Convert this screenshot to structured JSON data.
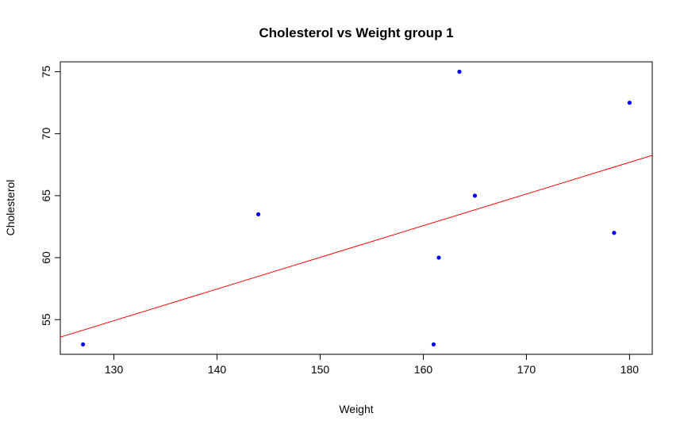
{
  "chart_data": {
    "type": "scatter",
    "title": "Cholesterol vs Weight group 1",
    "xlabel": "Weight",
    "ylabel": "Cholesterol",
    "xlim": [
      124.8,
      182.2
    ],
    "ylim": [
      52.2,
      75.8
    ],
    "x_ticks": [
      130,
      140,
      150,
      160,
      170,
      180
    ],
    "y_ticks": [
      55,
      60,
      65,
      70,
      75
    ],
    "grid": false,
    "legend": "none",
    "point_color": "#0000ff",
    "line_color": "#ff0000",
    "points": [
      {
        "x": 127,
        "y": 53
      },
      {
        "x": 144,
        "y": 63.5
      },
      {
        "x": 161,
        "y": 53
      },
      {
        "x": 161.5,
        "y": 60
      },
      {
        "x": 163.5,
        "y": 75
      },
      {
        "x": 165,
        "y": 65
      },
      {
        "x": 178.5,
        "y": 62
      },
      {
        "x": 180,
        "y": 72.5
      }
    ],
    "regression_line": {
      "intercept": 21.7,
      "slope": 0.2555
    }
  }
}
